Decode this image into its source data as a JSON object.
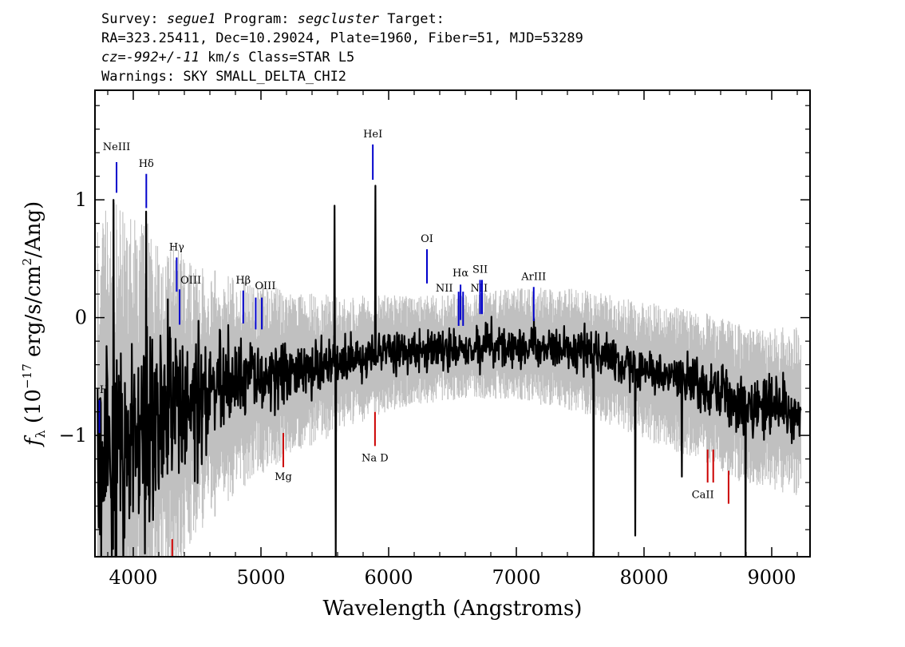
{
  "header": {
    "line1": [
      {
        "text": "Survey: ",
        "style": "normal"
      },
      {
        "text": "segue1",
        "style": "italic"
      },
      {
        "text": " Program: ",
        "style": "normal"
      },
      {
        "text": "segcluster",
        "style": "italic"
      },
      {
        "text": " Target:",
        "style": "normal"
      }
    ],
    "line2": "RA=323.25411, Dec=10.29024, Plate=1960, Fiber=51, MJD=53289",
    "line3": [
      {
        "text": "cz=-992+/-11",
        "style": "italic"
      },
      {
        "text": " km/s Class=STAR L5",
        "style": "normal"
      }
    ],
    "line4": "Warnings: SKY SMALL_DELTA_CHI2"
  },
  "chart_data": {
    "type": "line",
    "xlabel": "Wavelength (Angstroms)",
    "ylabel_main": "f",
    "ylabel_sub": "λ",
    "ylabel_rest_a": " (10",
    "ylabel_exp1": "−17",
    "ylabel_rest_b": " erg/s/cm",
    "ylabel_exp2": "2",
    "ylabel_rest_c": "/Ang)",
    "xlim": [
      3700,
      9300
    ],
    "ylim": [
      -2.03,
      1.93
    ],
    "x_ticks": [
      4000,
      5000,
      6000,
      7000,
      8000,
      9000
    ],
    "x_tick_labels": [
      "4000",
      "5000",
      "6000",
      "7000",
      "8000",
      "9000"
    ],
    "y_ticks": [
      -1,
      0,
      1
    ],
    "y_tick_labels": [
      "−1",
      "0",
      "1"
    ],
    "series": [
      {
        "role": "noise",
        "color": "#c0c0c0",
        "profile": [
          [
            3720,
            1.6
          ],
          [
            3850,
            1.7
          ],
          [
            4000,
            1.45
          ],
          [
            4200,
            1.2
          ],
          [
            4500,
            0.9
          ],
          [
            4800,
            0.7
          ],
          [
            5200,
            0.55
          ],
          [
            5600,
            0.45
          ],
          [
            6200,
            0.35
          ],
          [
            6800,
            0.35
          ],
          [
            7400,
            0.4
          ],
          [
            8000,
            0.45
          ],
          [
            8600,
            0.5
          ],
          [
            9200,
            0.55
          ]
        ]
      },
      {
        "role": "flux",
        "color": "#000000",
        "continuum": [
          [
            3720,
            -1.3
          ],
          [
            3900,
            -1.1
          ],
          [
            4100,
            -0.9
          ],
          [
            4300,
            -0.8
          ],
          [
            4500,
            -0.7
          ],
          [
            4800,
            -0.58
          ],
          [
            5000,
            -0.52
          ],
          [
            5500,
            -0.42
          ],
          [
            6000,
            -0.3
          ],
          [
            6500,
            -0.25
          ],
          [
            7000,
            -0.22
          ],
          [
            7500,
            -0.28
          ],
          [
            8000,
            -0.45
          ],
          [
            8500,
            -0.6
          ],
          [
            8800,
            -0.75
          ],
          [
            9230,
            -0.8
          ]
        ],
        "scatter": [
          [
            3720,
            0.8
          ],
          [
            4000,
            0.6
          ],
          [
            4300,
            0.5
          ],
          [
            4600,
            0.3
          ],
          [
            5000,
            0.2
          ],
          [
            5600,
            0.15
          ],
          [
            6500,
            0.12
          ],
          [
            7500,
            0.12
          ],
          [
            8300,
            0.15
          ],
          [
            9230,
            0.22
          ]
        ],
        "features": [
          {
            "x": 3845,
            "y": 1.0
          },
          {
            "x": 4100,
            "y": 0.9
          },
          {
            "x": 5577,
            "y": 0.95
          },
          {
            "x": 5585,
            "y": -2.03
          },
          {
            "x": 5895,
            "y": 1.12
          },
          {
            "x": 7605,
            "y": -2.03
          },
          {
            "x": 7930,
            "y": -1.85
          },
          {
            "x": 8295,
            "y": -1.35
          },
          {
            "x": 8795,
            "y": -2.03
          }
        ]
      }
    ],
    "line_markers": [
      {
        "label": "NeIII",
        "x": 3869,
        "y1": 1.32,
        "y2": 1.06,
        "color": "#0000cc",
        "label_y": 1.42
      },
      {
        "label": "Hδ",
        "x": 4102,
        "y1": 1.22,
        "y2": 0.93,
        "color": "#0000cc",
        "label_y": 1.28
      },
      {
        "label": "Hγ",
        "x": 4340,
        "y1": 0.51,
        "y2": 0.22,
        "color": "#0000cc",
        "label_y": 0.57
      },
      {
        "label": "OIII",
        "x": 4363,
        "y1": 0.24,
        "y2": -0.06,
        "color": "#0000cc",
        "label_y": 0.29,
        "label_dx": 14
      },
      {
        "label": "Hβ",
        "x": 4861,
        "y1": 0.23,
        "y2": -0.05,
        "color": "#0000cc",
        "label_y": 0.29
      },
      {
        "label": "OIII",
        "x": 4959,
        "y1": 0.17,
        "y2": -0.1,
        "color": "#0000cc",
        "label_y": 0.24,
        "label_dx": 12
      },
      {
        "label": "",
        "x": 5007,
        "y1": 0.17,
        "y2": -0.1,
        "color": "#0000cc"
      },
      {
        "label": "HeI",
        "x": 5876,
        "y1": 1.47,
        "y2": 1.17,
        "color": "#0000cc",
        "label_y": 1.53
      },
      {
        "label": "OI",
        "x": 6300,
        "y1": 0.58,
        "y2": 0.29,
        "color": "#0000cc",
        "label_y": 0.64
      },
      {
        "label": "NII",
        "x": 6548,
        "y1": 0.22,
        "y2": -0.07,
        "color": "#0000cc",
        "label_y": 0.22,
        "label_dx": -18
      },
      {
        "label": "Hα",
        "x": 6563,
        "y1": 0.28,
        "y2": -0.02,
        "color": "#0000cc",
        "label_y": 0.35
      },
      {
        "label": "NII",
        "x": 6583,
        "y1": 0.22,
        "y2": -0.07,
        "color": "#0000cc",
        "label_y": 0.22,
        "label_dx": 20
      },
      {
        "label": "SII",
        "x": 6716,
        "y1": 0.32,
        "y2": 0.03,
        "color": "#0000cc",
        "label_y": 0.38
      },
      {
        "label": "",
        "x": 6731,
        "y1": 0.32,
        "y2": 0.03,
        "color": "#0000cc"
      },
      {
        "label": "ArIII",
        "x": 7136,
        "y1": 0.26,
        "y2": -0.03,
        "color": "#0000cc",
        "label_y": 0.32
      },
      {
        "label": "H",
        "x": 3735,
        "y1": -0.7,
        "y2": -0.98,
        "color": "#0000cc",
        "label_y": -0.64,
        "label_dx": 6
      },
      {
        "label": "Mg",
        "x": 5175,
        "y1": -0.98,
        "y2": -1.27,
        "color": "#cc0000",
        "label_y": -1.38
      },
      {
        "label": "Na D",
        "x": 5893,
        "y1": -0.8,
        "y2": -1.09,
        "color": "#cc0000",
        "label_y": -1.22
      },
      {
        "label": "CaII",
        "x": 8498,
        "y1": -1.12,
        "y2": -1.4,
        "color": "#cc0000",
        "label_y": -1.53,
        "label_dx": -6
      },
      {
        "label": "",
        "x": 8542,
        "y1": -1.12,
        "y2": -1.4,
        "color": "#cc0000"
      },
      {
        "label": "",
        "x": 8662,
        "y1": -1.3,
        "y2": -1.58,
        "color": "#cc0000"
      },
      {
        "label": "",
        "x": 4305,
        "y1": -1.88,
        "y2": -2.03,
        "color": "#cc0000"
      }
    ]
  }
}
